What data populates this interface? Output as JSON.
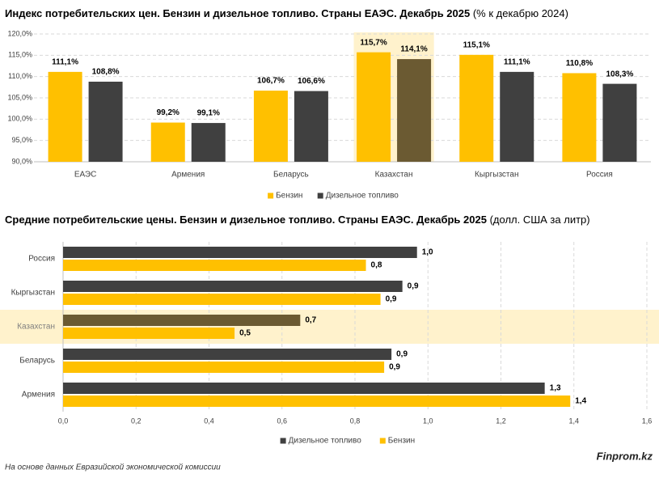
{
  "chart_data": [
    {
      "type": "bar",
      "title": "Индекс потребительских цен. Бензин и дизельное топливо. Страны ЕАЭС. Декабрь 2025",
      "subtitle": "(% к декабрю 2024)",
      "categories": [
        "ЕАЭС",
        "Армения",
        "Беларусь",
        "Казахстан",
        "Кыргызстан",
        "Россия"
      ],
      "series": [
        {
          "name": "Бензин",
          "color": "#ffc000",
          "values": [
            111.1,
            99.2,
            106.7,
            115.7,
            115.1,
            110.8
          ],
          "value_labels": [
            "111,1%",
            "99,2%",
            "106,7%",
            "115,7%",
            "115,1%",
            "110,8%"
          ]
        },
        {
          "name": "Дизельное топливо",
          "color": "#404040",
          "highlight_color": "#6b5a32",
          "values": [
            108.8,
            99.1,
            106.6,
            114.1,
            111.1,
            108.3
          ],
          "value_labels": [
            "108,8%",
            "99,1%",
            "106,6%",
            "114,1%",
            "111,1%",
            "108,3%"
          ]
        }
      ],
      "highlight": 3,
      "highlight_band_color": "#fff2cc",
      "ylim": [
        90,
        120
      ],
      "yticks": [
        {
          "value": 90,
          "label": "90,0%"
        },
        {
          "value": 95,
          "label": "95,0%"
        },
        {
          "value": 100,
          "label": "100,0%"
        },
        {
          "value": 105,
          "label": "105,0%"
        },
        {
          "value": 110,
          "label": "110,0%"
        },
        {
          "value": 115,
          "label": "115,0%"
        },
        {
          "value": 120,
          "label": "120,0%"
        }
      ],
      "grid": true,
      "legend": "bottom"
    },
    {
      "type": "barh",
      "title": "Средние потребительские цены. Бензин и дизельное топливо. Страны ЕАЭС. Декабрь 2025",
      "subtitle": "(долл. США за литр)",
      "categories": [
        "Россия",
        "Кыргызстан",
        "Казахстан",
        "Беларусь",
        "Армения"
      ],
      "series": [
        {
          "name": "Дизельное топливо",
          "color": "#404040",
          "highlight_color": "#6b5a32",
          "values": [
            0.97,
            0.93,
            0.65,
            0.9,
            1.32
          ],
          "value_labels": [
            "1,0",
            "0,9",
            "0,7",
            "0,9",
            "1,3"
          ]
        },
        {
          "name": "Бензин",
          "color": "#ffc000",
          "values": [
            0.83,
            0.87,
            0.47,
            0.88,
            1.39
          ],
          "value_labels": [
            "0,8",
            "0,9",
            "0,5",
            "0,9",
            "1,4"
          ]
        }
      ],
      "highlight": 2,
      "highlight_band_color": "#fff2cc",
      "xlim": [
        0,
        1.6
      ],
      "xticks": [
        {
          "value": 0,
          "label": "0,0"
        },
        {
          "value": 0.2,
          "label": "0,2"
        },
        {
          "value": 0.4,
          "label": "0,4"
        },
        {
          "value": 0.6,
          "label": "0,6"
        },
        {
          "value": 0.8,
          "label": "0,8"
        },
        {
          "value": 1.0,
          "label": "1,0"
        },
        {
          "value": 1.2,
          "label": "1,2"
        },
        {
          "value": 1.4,
          "label": "1,4"
        },
        {
          "value": 1.6,
          "label": "1,6"
        }
      ],
      "grid": true,
      "legend": "bottom"
    }
  ],
  "footer": {
    "source": "На основе данных Евразийской экономической комиссии",
    "brand": "Finprom.kz"
  }
}
